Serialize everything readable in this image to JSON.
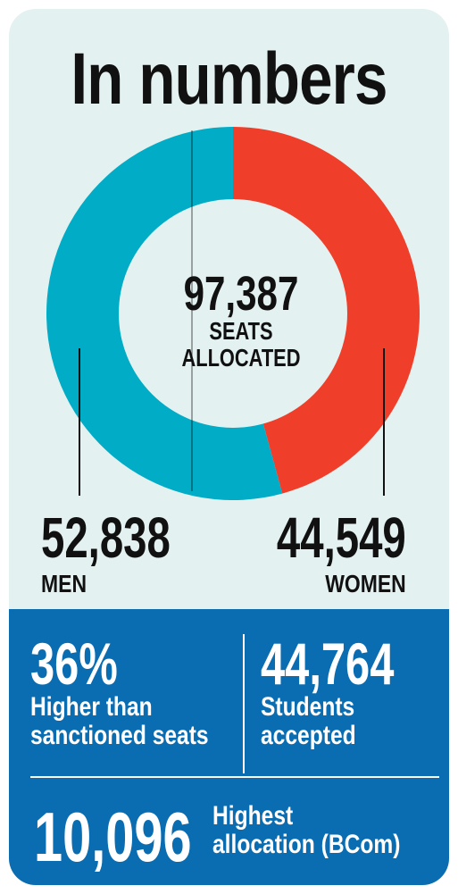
{
  "title": "In numbers",
  "chart_data": {
    "type": "pie",
    "style": "donut",
    "center": {
      "value": "97,387",
      "label_line1": "SEATS",
      "label_line2": "ALLOCATED"
    },
    "slices": [
      {
        "label": "MEN",
        "value": 52838,
        "display": "52,838",
        "color": "#00acc6"
      },
      {
        "label": "WOMEN",
        "value": 44549,
        "display": "44,549",
        "color": "#ef3e29"
      }
    ]
  },
  "stats": {
    "pct": {
      "value": "36%",
      "desc_line1": "Higher than",
      "desc_line2": "sanctioned seats"
    },
    "accepted": {
      "value": "44,764",
      "desc_line1": "Students",
      "desc_line2": "accepted"
    },
    "highest": {
      "value": "10,096",
      "desc_line1": "Highest",
      "desc_line2": "allocation (BCom)"
    }
  },
  "colors": {
    "background": "#e4f1f1",
    "panel": "#0a6cb1",
    "men": "#00acc6",
    "women": "#ef3e29",
    "text": "#111111"
  }
}
